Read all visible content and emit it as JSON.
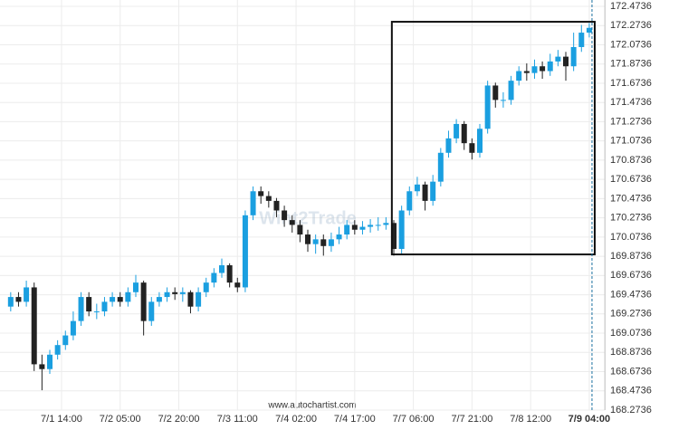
{
  "chart_data": {
    "type": "candlestick",
    "watermark": "Wint2Trade",
    "source": "www.autochartist.com",
    "up_color": "#1a9fe0",
    "down_color": "#222222",
    "grid": true,
    "xlim": [
      0,
      153
    ],
    "ylim": [
      168.2736,
      172.4736
    ],
    "yticks": [
      168.2736,
      168.4736,
      168.6736,
      168.8736,
      169.0736,
      169.2736,
      169.4736,
      169.6736,
      169.8736,
      170.0736,
      170.2736,
      170.4736,
      170.6736,
      170.8736,
      171.0736,
      171.2736,
      171.4736,
      171.6736,
      171.8736,
      172.0736,
      172.2736,
      172.4736
    ],
    "xticks": [
      {
        "value": 14,
        "label": "7/1 14:00"
      },
      {
        "value": 29,
        "label": "7/2 05:00"
      },
      {
        "value": 44,
        "label": "7/2 20:00"
      },
      {
        "value": 59,
        "label": "7/3 11:00"
      },
      {
        "value": 74,
        "label": "7/4 02:00"
      },
      {
        "value": 89,
        "label": "7/4 17:00"
      },
      {
        "value": 104,
        "label": "7/7 06:00"
      },
      {
        "value": 119,
        "label": "7/7 21:00"
      },
      {
        "value": 134,
        "label": "7/8 12:00"
      },
      {
        "value": 149,
        "label": "7/9 04:00"
      }
    ],
    "highlight_xtick": 9,
    "pattern_box": {
      "x0": 98.5,
      "x1": 150.4,
      "y0": 169.893,
      "y1": 172.313
    },
    "now_line": 149.7,
    "x": [
      1,
      3,
      5,
      7,
      9,
      11,
      13,
      15,
      17,
      19,
      21,
      23,
      25,
      27,
      29,
      31,
      33,
      35,
      37,
      39,
      41,
      43,
      45,
      47,
      49,
      51,
      53,
      55,
      57,
      59,
      61,
      63,
      65,
      67,
      69,
      71,
      73,
      75,
      77,
      79,
      81,
      83,
      85,
      87,
      89,
      91,
      93,
      95,
      97,
      99,
      101,
      103,
      105,
      107,
      109,
      111,
      113,
      115,
      117,
      119,
      121,
      123,
      125,
      127,
      129,
      131,
      133,
      135,
      137,
      139,
      141,
      143,
      145,
      147,
      149
    ],
    "open": [
      169.35,
      169.45,
      169.4,
      169.55,
      168.75,
      168.7,
      168.85,
      168.95,
      169.05,
      169.2,
      169.45,
      169.3,
      169.3,
      169.4,
      169.45,
      169.4,
      169.5,
      169.6,
      169.2,
      169.4,
      169.45,
      169.5,
      169.48,
      169.5,
      169.35,
      169.5,
      169.6,
      169.7,
      169.78,
      169.6,
      169.55,
      170.3,
      170.55,
      170.5,
      170.45,
      170.35,
      170.25,
      170.2,
      170.1,
      170.0,
      170.05,
      169.98,
      170.05,
      170.1,
      170.2,
      170.15,
      170.18,
      170.2,
      170.2,
      170.22,
      169.95,
      170.35,
      170.55,
      170.62,
      170.45,
      170.65,
      170.95,
      171.1,
      171.25,
      171.05,
      170.95,
      171.2,
      171.65,
      171.5,
      171.5,
      171.7,
      171.8,
      171.78,
      171.85,
      171.8,
      171.9,
      171.95,
      171.85,
      172.05,
      172.2
    ],
    "high": [
      169.5,
      169.5,
      169.62,
      169.6,
      168.85,
      168.9,
      169.0,
      169.1,
      169.3,
      169.5,
      169.5,
      169.38,
      169.45,
      169.5,
      169.5,
      169.55,
      169.68,
      169.62,
      169.45,
      169.5,
      169.55,
      169.55,
      169.55,
      169.52,
      169.55,
      169.65,
      169.75,
      169.85,
      169.8,
      169.65,
      170.35,
      170.6,
      170.6,
      170.55,
      170.48,
      170.4,
      170.3,
      170.25,
      170.15,
      170.1,
      170.1,
      170.12,
      170.18,
      170.25,
      170.25,
      170.24,
      170.26,
      170.28,
      170.28,
      170.25,
      170.4,
      170.6,
      170.7,
      170.65,
      170.72,
      171.0,
      171.18,
      171.3,
      171.28,
      171.1,
      171.25,
      171.7,
      171.68,
      171.58,
      171.75,
      171.85,
      171.88,
      171.92,
      171.9,
      171.98,
      172.02,
      172.0,
      172.2,
      172.28,
      172.3
    ],
    "low": [
      169.3,
      169.35,
      169.35,
      168.68,
      168.48,
      168.65,
      168.8,
      168.9,
      169.0,
      169.15,
      169.25,
      169.22,
      169.25,
      169.35,
      169.35,
      169.35,
      169.45,
      169.05,
      169.15,
      169.35,
      169.4,
      169.42,
      169.4,
      169.28,
      169.3,
      169.45,
      169.55,
      169.65,
      169.55,
      169.5,
      169.5,
      170.25,
      170.42,
      170.38,
      170.28,
      170.18,
      170.12,
      170.02,
      169.92,
      169.9,
      169.88,
      169.92,
      170.0,
      170.05,
      170.1,
      170.1,
      170.12,
      170.14,
      170.15,
      169.88,
      169.9,
      170.3,
      170.5,
      170.35,
      170.4,
      170.6,
      170.9,
      171.05,
      170.98,
      170.88,
      170.9,
      171.15,
      171.42,
      171.42,
      171.45,
      171.65,
      171.7,
      171.72,
      171.72,
      171.75,
      171.85,
      171.7,
      171.8,
      172.0,
      172.15
    ],
    "close": [
      169.45,
      169.4,
      169.55,
      168.75,
      168.7,
      168.85,
      168.95,
      169.05,
      169.2,
      169.45,
      169.3,
      169.3,
      169.4,
      169.45,
      169.4,
      169.5,
      169.6,
      169.2,
      169.4,
      169.45,
      169.5,
      169.48,
      169.5,
      169.35,
      169.5,
      169.6,
      169.7,
      169.78,
      169.6,
      169.55,
      170.3,
      170.55,
      170.5,
      170.45,
      170.35,
      170.25,
      170.2,
      170.1,
      170.0,
      170.05,
      169.98,
      170.05,
      170.1,
      170.2,
      170.15,
      170.18,
      170.2,
      170.2,
      170.22,
      169.95,
      170.35,
      170.55,
      170.62,
      170.45,
      170.65,
      170.95,
      171.1,
      171.25,
      171.05,
      170.95,
      171.2,
      171.65,
      171.5,
      171.5,
      171.7,
      171.8,
      171.78,
      171.85,
      171.8,
      171.9,
      171.95,
      171.85,
      172.05,
      172.2,
      172.25
    ]
  }
}
